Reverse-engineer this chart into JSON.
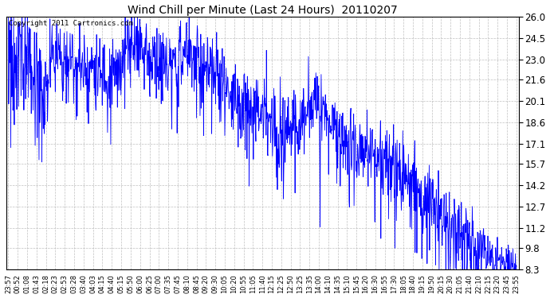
{
  "title": "Wind Chill per Minute (Last 24 Hours)  20110207",
  "copyright": "Copyright 2011 Cartronics.com",
  "line_color": "#0000FF",
  "background_color": "#FFFFFF",
  "grid_color": "#B0B0B0",
  "ylim": [
    8.3,
    26.0
  ],
  "yticks": [
    8.3,
    9.8,
    11.2,
    12.7,
    14.2,
    15.7,
    17.1,
    18.6,
    20.1,
    21.6,
    23.0,
    24.5,
    26.0
  ],
  "xtick_labels": [
    "23:57",
    "00:52",
    "01:08",
    "01:43",
    "02:18",
    "02:23",
    "02:53",
    "03:28",
    "03:40",
    "04:03",
    "04:15",
    "04:40",
    "05:15",
    "05:50",
    "06:00",
    "06:25",
    "07:00",
    "07:35",
    "07:45",
    "08:10",
    "08:45",
    "09:20",
    "09:30",
    "10:05",
    "10:20",
    "10:55",
    "11:05",
    "11:40",
    "12:15",
    "12:25",
    "12:50",
    "13:25",
    "13:35",
    "14:00",
    "14:10",
    "14:35",
    "15:10",
    "15:45",
    "16:20",
    "16:30",
    "16:55",
    "17:30",
    "18:05",
    "18:40",
    "19:15",
    "19:50",
    "20:15",
    "20:30",
    "21:05",
    "21:40",
    "22:10",
    "22:15",
    "23:20",
    "23:45",
    "23:55"
  ],
  "num_points": 1440,
  "figwidth": 6.9,
  "figheight": 3.75,
  "dpi": 100
}
